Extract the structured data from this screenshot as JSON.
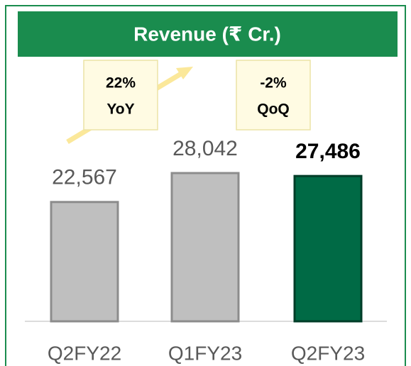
{
  "chart_data": {
    "type": "bar",
    "title": "Revenue (₹ Cr.)",
    "categories": [
      "Q2FY22",
      "Q1FY23",
      "Q2FY23"
    ],
    "values": [
      22567,
      28042,
      27486
    ],
    "value_labels": [
      "22,567",
      "28,042",
      "27,486"
    ],
    "colors": [
      "#bfbfbf",
      "#bfbfbf",
      "#006a45"
    ],
    "annotations": [
      {
        "lines": [
          "22%",
          "YoY"
        ]
      },
      {
        "lines": [
          "-2%",
          "QoQ"
        ]
      }
    ]
  }
}
